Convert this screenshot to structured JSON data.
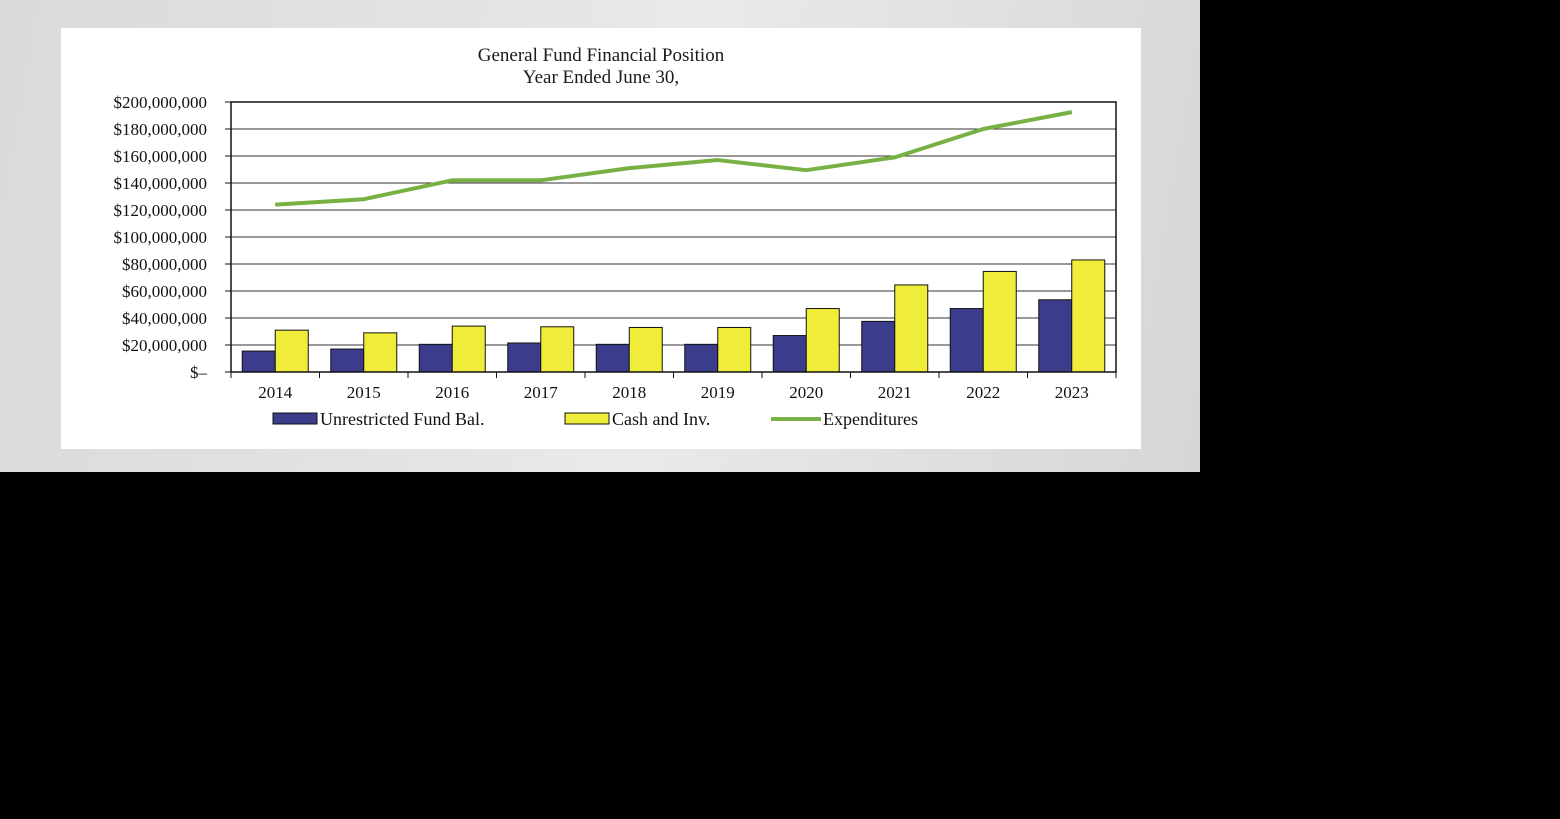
{
  "chart_data": {
    "type": "bar",
    "title": "General Fund Financial Position",
    "subtitle": "Year Ended June 30,",
    "categories": [
      "2014",
      "2015",
      "2016",
      "2017",
      "2018",
      "2019",
      "2020",
      "2021",
      "2022",
      "2023"
    ],
    "series": [
      {
        "name": "Unrestricted Fund Bal.",
        "type": "bar",
        "color": "#3b3d8c",
        "values": [
          15500000,
          17000000,
          20500000,
          21500000,
          20500000,
          20500000,
          27000000,
          37500000,
          47000000,
          53500000
        ]
      },
      {
        "name": "Cash and Inv.",
        "type": "bar",
        "color": "#f0ec3a",
        "values": [
          31000000,
          29000000,
          34000000,
          33500000,
          33000000,
          33000000,
          47000000,
          64500000,
          74500000,
          83000000
        ]
      },
      {
        "name": "Expenditures",
        "type": "line",
        "color": "#77b043",
        "values": [
          124000000,
          128000000,
          142000000,
          142000000,
          151000000,
          157000000,
          149500000,
          159000000,
          180000000,
          192500000
        ]
      }
    ],
    "ylim": [
      0,
      200000000
    ],
    "yticks": [
      {
        "value": 0,
        "label": "$–"
      },
      {
        "value": 20000000,
        "label": "$20,000,000"
      },
      {
        "value": 40000000,
        "label": "$40,000,000"
      },
      {
        "value": 60000000,
        "label": "$60,000,000"
      },
      {
        "value": 80000000,
        "label": "$80,000,000"
      },
      {
        "value": 100000000,
        "label": "$100,000,000"
      },
      {
        "value": 120000000,
        "label": "$120,000,000"
      },
      {
        "value": 140000000,
        "label": "$140,000,000"
      },
      {
        "value": 160000000,
        "label": "$160,000,000"
      },
      {
        "value": 180000000,
        "label": "$180,000,000"
      },
      {
        "value": 200000000,
        "label": "$200,000,000"
      }
    ],
    "grid": true,
    "legend": "bottom"
  }
}
